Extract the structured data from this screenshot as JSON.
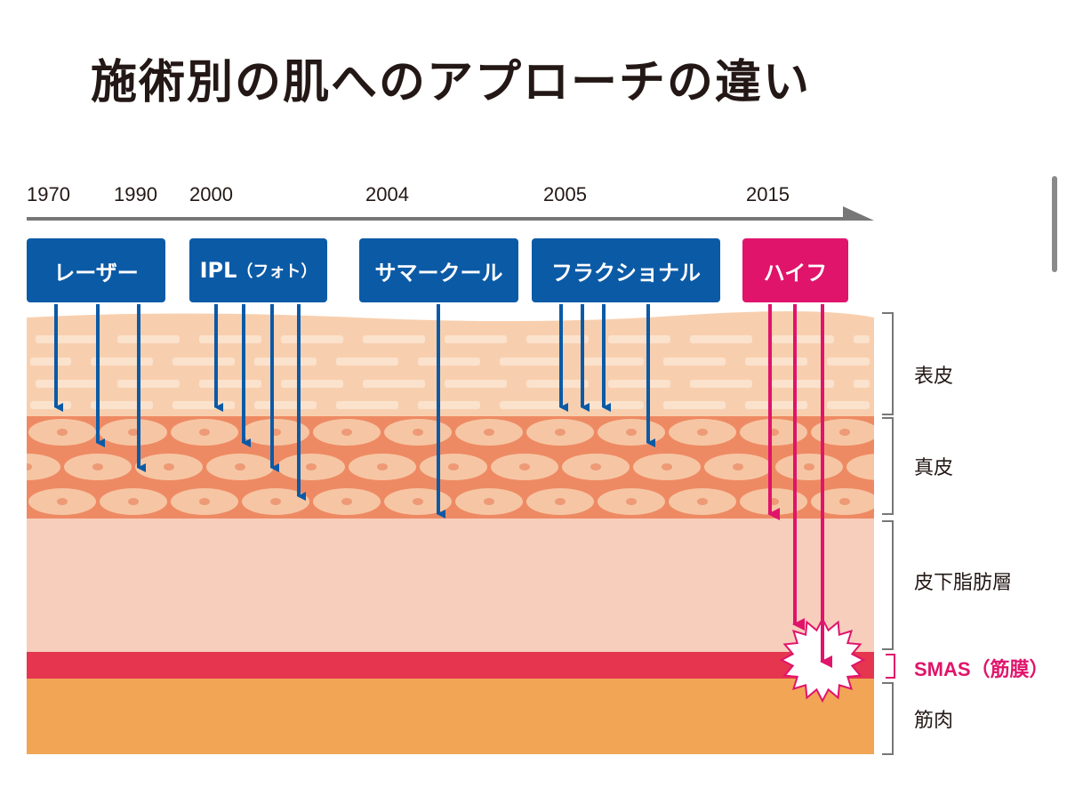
{
  "title": "施術別の肌へのアプローチの違い",
  "timeline": {
    "years": [
      "1970",
      "1990",
      "2000",
      "2004",
      "2005",
      "2015"
    ]
  },
  "treatments": [
    {
      "label": "レーザー",
      "suffix": "",
      "color": "#0b5aa6"
    },
    {
      "label": "IPL",
      "suffix": "（フォト）",
      "color": "#0b5aa6"
    },
    {
      "label": "サマークール",
      "suffix": "",
      "color": "#0b5aa6"
    },
    {
      "label": "フラクショナル",
      "suffix": "",
      "color": "#0b5aa6"
    },
    {
      "label": "ハイフ",
      "suffix": "",
      "color": "#e0146b"
    }
  ],
  "layers": {
    "epidermis": "表皮",
    "dermis": "真皮",
    "subcutaneous": "皮下脂肪層",
    "smas": "SMAS（筋膜）",
    "muscle": "筋肉"
  },
  "colors": {
    "blue": "#0b5aa6",
    "pink": "#e0146b",
    "epidermis": "#f8cfae",
    "dermis": "#ee8a63",
    "subcutaneous": "#f7cdbc",
    "smas": "#e5354f",
    "muscle": "#f1a555"
  }
}
